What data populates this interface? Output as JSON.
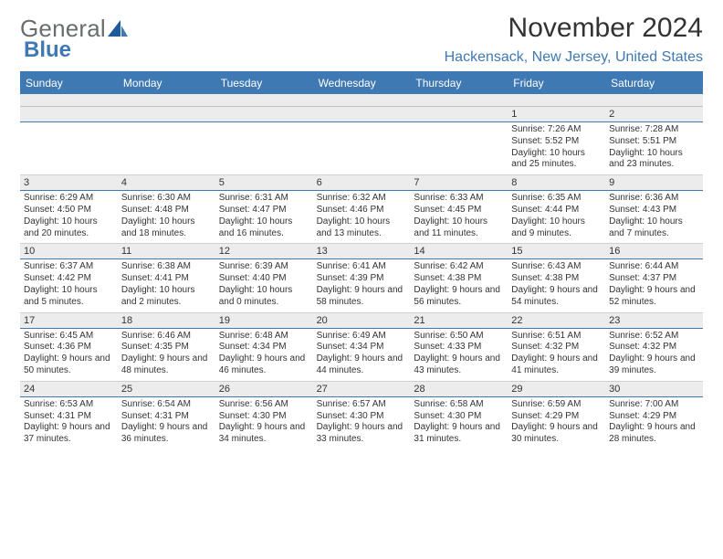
{
  "logo": {
    "general": "General",
    "blue": "Blue"
  },
  "header": {
    "title": "November 2024",
    "location": "Hackensack, New Jersey, United States"
  },
  "colors": {
    "brand_blue": "#3e79b4",
    "header_bg": "#3e79b4",
    "daynum_bg": "#ececec",
    "text": "#333333"
  },
  "dow": [
    "Sunday",
    "Monday",
    "Tuesday",
    "Wednesday",
    "Thursday",
    "Friday",
    "Saturday"
  ],
  "weeks": [
    [
      null,
      null,
      null,
      null,
      null,
      {
        "num": "1",
        "sunrise": "Sunrise: 7:26 AM",
        "sunset": "Sunset: 5:52 PM",
        "daylight": "Daylight: 10 hours and 25 minutes."
      },
      {
        "num": "2",
        "sunrise": "Sunrise: 7:28 AM",
        "sunset": "Sunset: 5:51 PM",
        "daylight": "Daylight: 10 hours and 23 minutes."
      }
    ],
    [
      {
        "num": "3",
        "sunrise": "Sunrise: 6:29 AM",
        "sunset": "Sunset: 4:50 PM",
        "daylight": "Daylight: 10 hours and 20 minutes."
      },
      {
        "num": "4",
        "sunrise": "Sunrise: 6:30 AM",
        "sunset": "Sunset: 4:48 PM",
        "daylight": "Daylight: 10 hours and 18 minutes."
      },
      {
        "num": "5",
        "sunrise": "Sunrise: 6:31 AM",
        "sunset": "Sunset: 4:47 PM",
        "daylight": "Daylight: 10 hours and 16 minutes."
      },
      {
        "num": "6",
        "sunrise": "Sunrise: 6:32 AM",
        "sunset": "Sunset: 4:46 PM",
        "daylight": "Daylight: 10 hours and 13 minutes."
      },
      {
        "num": "7",
        "sunrise": "Sunrise: 6:33 AM",
        "sunset": "Sunset: 4:45 PM",
        "daylight": "Daylight: 10 hours and 11 minutes."
      },
      {
        "num": "8",
        "sunrise": "Sunrise: 6:35 AM",
        "sunset": "Sunset: 4:44 PM",
        "daylight": "Daylight: 10 hours and 9 minutes."
      },
      {
        "num": "9",
        "sunrise": "Sunrise: 6:36 AM",
        "sunset": "Sunset: 4:43 PM",
        "daylight": "Daylight: 10 hours and 7 minutes."
      }
    ],
    [
      {
        "num": "10",
        "sunrise": "Sunrise: 6:37 AM",
        "sunset": "Sunset: 4:42 PM",
        "daylight": "Daylight: 10 hours and 5 minutes."
      },
      {
        "num": "11",
        "sunrise": "Sunrise: 6:38 AM",
        "sunset": "Sunset: 4:41 PM",
        "daylight": "Daylight: 10 hours and 2 minutes."
      },
      {
        "num": "12",
        "sunrise": "Sunrise: 6:39 AM",
        "sunset": "Sunset: 4:40 PM",
        "daylight": "Daylight: 10 hours and 0 minutes."
      },
      {
        "num": "13",
        "sunrise": "Sunrise: 6:41 AM",
        "sunset": "Sunset: 4:39 PM",
        "daylight": "Daylight: 9 hours and 58 minutes."
      },
      {
        "num": "14",
        "sunrise": "Sunrise: 6:42 AM",
        "sunset": "Sunset: 4:38 PM",
        "daylight": "Daylight: 9 hours and 56 minutes."
      },
      {
        "num": "15",
        "sunrise": "Sunrise: 6:43 AM",
        "sunset": "Sunset: 4:38 PM",
        "daylight": "Daylight: 9 hours and 54 minutes."
      },
      {
        "num": "16",
        "sunrise": "Sunrise: 6:44 AM",
        "sunset": "Sunset: 4:37 PM",
        "daylight": "Daylight: 9 hours and 52 minutes."
      }
    ],
    [
      {
        "num": "17",
        "sunrise": "Sunrise: 6:45 AM",
        "sunset": "Sunset: 4:36 PM",
        "daylight": "Daylight: 9 hours and 50 minutes."
      },
      {
        "num": "18",
        "sunrise": "Sunrise: 6:46 AM",
        "sunset": "Sunset: 4:35 PM",
        "daylight": "Daylight: 9 hours and 48 minutes."
      },
      {
        "num": "19",
        "sunrise": "Sunrise: 6:48 AM",
        "sunset": "Sunset: 4:34 PM",
        "daylight": "Daylight: 9 hours and 46 minutes."
      },
      {
        "num": "20",
        "sunrise": "Sunrise: 6:49 AM",
        "sunset": "Sunset: 4:34 PM",
        "daylight": "Daylight: 9 hours and 44 minutes."
      },
      {
        "num": "21",
        "sunrise": "Sunrise: 6:50 AM",
        "sunset": "Sunset: 4:33 PM",
        "daylight": "Daylight: 9 hours and 43 minutes."
      },
      {
        "num": "22",
        "sunrise": "Sunrise: 6:51 AM",
        "sunset": "Sunset: 4:32 PM",
        "daylight": "Daylight: 9 hours and 41 minutes."
      },
      {
        "num": "23",
        "sunrise": "Sunrise: 6:52 AM",
        "sunset": "Sunset: 4:32 PM",
        "daylight": "Daylight: 9 hours and 39 minutes."
      }
    ],
    [
      {
        "num": "24",
        "sunrise": "Sunrise: 6:53 AM",
        "sunset": "Sunset: 4:31 PM",
        "daylight": "Daylight: 9 hours and 37 minutes."
      },
      {
        "num": "25",
        "sunrise": "Sunrise: 6:54 AM",
        "sunset": "Sunset: 4:31 PM",
        "daylight": "Daylight: 9 hours and 36 minutes."
      },
      {
        "num": "26",
        "sunrise": "Sunrise: 6:56 AM",
        "sunset": "Sunset: 4:30 PM",
        "daylight": "Daylight: 9 hours and 34 minutes."
      },
      {
        "num": "27",
        "sunrise": "Sunrise: 6:57 AM",
        "sunset": "Sunset: 4:30 PM",
        "daylight": "Daylight: 9 hours and 33 minutes."
      },
      {
        "num": "28",
        "sunrise": "Sunrise: 6:58 AM",
        "sunset": "Sunset: 4:30 PM",
        "daylight": "Daylight: 9 hours and 31 minutes."
      },
      {
        "num": "29",
        "sunrise": "Sunrise: 6:59 AM",
        "sunset": "Sunset: 4:29 PM",
        "daylight": "Daylight: 9 hours and 30 minutes."
      },
      {
        "num": "30",
        "sunrise": "Sunrise: 7:00 AM",
        "sunset": "Sunset: 4:29 PM",
        "daylight": "Daylight: 9 hours and 28 minutes."
      }
    ]
  ]
}
